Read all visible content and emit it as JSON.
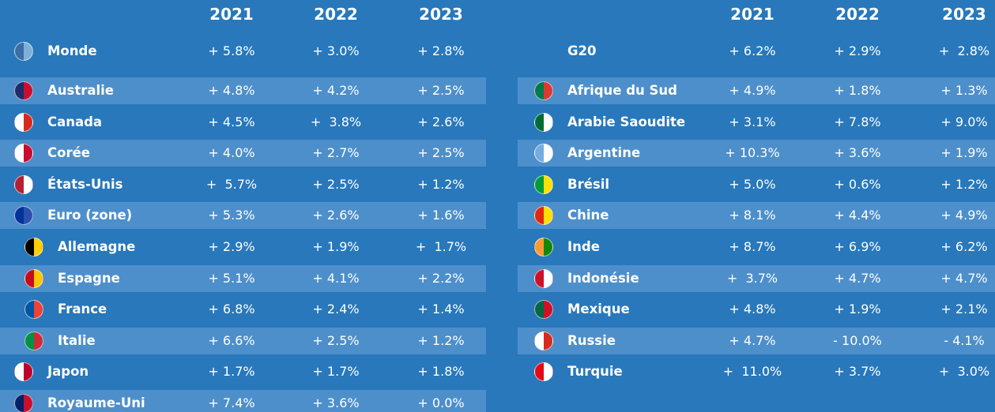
{
  "left": {
    "years": [
      "2021",
      "2022",
      "2023"
    ],
    "rows": [
      [
        "Monde",
        "+ 5.8%",
        "+ 3.0%",
        "+ 2.8%"
      ],
      [
        "Australie",
        "+ 4.8%",
        "+ 4.2%",
        "+ 2.5%"
      ],
      [
        "Canada",
        "+ 4.5%",
        "+  3.8%",
        "+ 2.6%"
      ],
      [
        "Corée",
        "+ 4.0%",
        "+ 2.7%",
        "+ 2.5%"
      ],
      [
        "États-Unis",
        "+  5.7%",
        "+ 2.5%",
        "+ 1.2%"
      ],
      [
        "Euro (zone)",
        "+ 5.3%",
        "+ 2.6%",
        "+ 1.6%"
      ],
      [
        "Allemagne",
        "+ 2.9%",
        "+ 1.9%",
        "+  1.7%"
      ],
      [
        "Espagne",
        "+ 5.1%",
        "+ 4.1%",
        "+ 2.2%"
      ],
      [
        "France",
        "+ 6.8%",
        "+ 2.4%",
        "+ 1.4%"
      ],
      [
        "Italie",
        "+ 6.6%",
        "+ 2.5%",
        "+ 1.2%"
      ],
      [
        "Japon",
        "+ 1.7%",
        "+ 1.7%",
        "+ 1.8%"
      ],
      [
        "Royaume-Uni",
        "+ 7.4%",
        "+ 3.6%",
        "+ 0.0%"
      ]
    ]
  },
  "right": {
    "years": [
      "2021",
      "2022",
      "2023"
    ],
    "rows": [
      [
        "G20",
        "+ 6.2%",
        "+ 2.9%",
        "+  2.8%"
      ],
      [
        "Afrique du Sud",
        "+ 4.9%",
        "+ 1.8%",
        "+ 1.3%"
      ],
      [
        "Arabie Saoudite",
        "+ 3.1%",
        "+ 7.8%",
        "+ 9.0%"
      ],
      [
        "Argentine",
        "+ 10.3%",
        "+ 3.6%",
        "+ 1.9%"
      ],
      [
        "Brésil",
        "+ 5.0%",
        "+ 0.6%",
        "+ 1.2%"
      ],
      [
        "Chine",
        "+ 8.1%",
        "+ 4.4%",
        "+ 4.9%"
      ],
      [
        "Inde",
        "+ 8.7%",
        "+ 6.9%",
        "+ 6.2%"
      ],
      [
        "Indonésie",
        "+  3.7%",
        "+ 4.7%",
        "+ 4.7%"
      ],
      [
        "Mexique",
        "+ 4.8%",
        "+ 1.9%",
        "+ 2.1%"
      ],
      [
        "Russie",
        "+ 4.7%",
        "- 10.0%",
        "- 4.1%"
      ],
      [
        "Turquie",
        "+  11.0%",
        "+ 3.7%",
        "+  3.0%"
      ]
    ]
  }
}
